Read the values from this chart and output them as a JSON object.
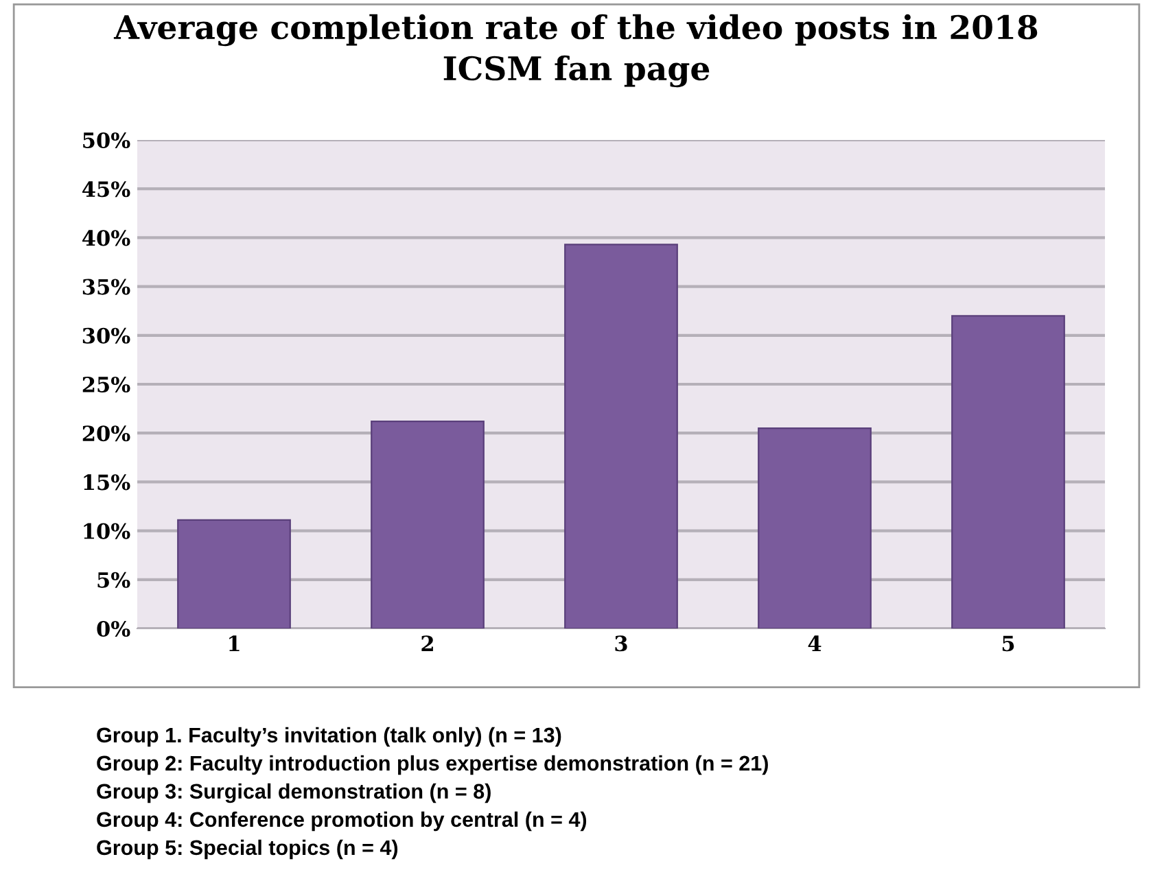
{
  "chart_data": {
    "type": "bar",
    "title": "Average completion rate of the video posts in 2018",
    "subtitle": "ICSM fan page",
    "categories": [
      "1",
      "2",
      "3",
      "4",
      "5"
    ],
    "values": [
      11.1,
      21.2,
      39.3,
      20.5,
      32.0
    ],
    "color": "#7a5b9c",
    "ylim": [
      0,
      50
    ],
    "yticks": [
      {
        "value": 0,
        "label": "0%"
      },
      {
        "value": 5,
        "label": "5%"
      },
      {
        "value": 10,
        "label": "10%"
      },
      {
        "value": 15,
        "label": "15%"
      },
      {
        "value": 20,
        "label": "20%"
      },
      {
        "value": 25,
        "label": "25%"
      },
      {
        "value": 30,
        "label": "30%"
      },
      {
        "value": 35,
        "label": "35%"
      },
      {
        "value": 40,
        "label": "40%"
      },
      {
        "value": 45,
        "label": "45%"
      },
      {
        "value": 50,
        "label": "50%"
      }
    ],
    "grid": "y",
    "annotations": [
      "Group 1. Faculty’s invitation (talk only) (n = 13)",
      "Group 2: Faculty introduction plus expertise demonstration (n = 21)",
      "Group 3: Surgical demonstration (n = 8)",
      "Group 4: Conference promotion by central (n = 4)",
      "Group 5: Special topics (n = 4)"
    ]
  }
}
